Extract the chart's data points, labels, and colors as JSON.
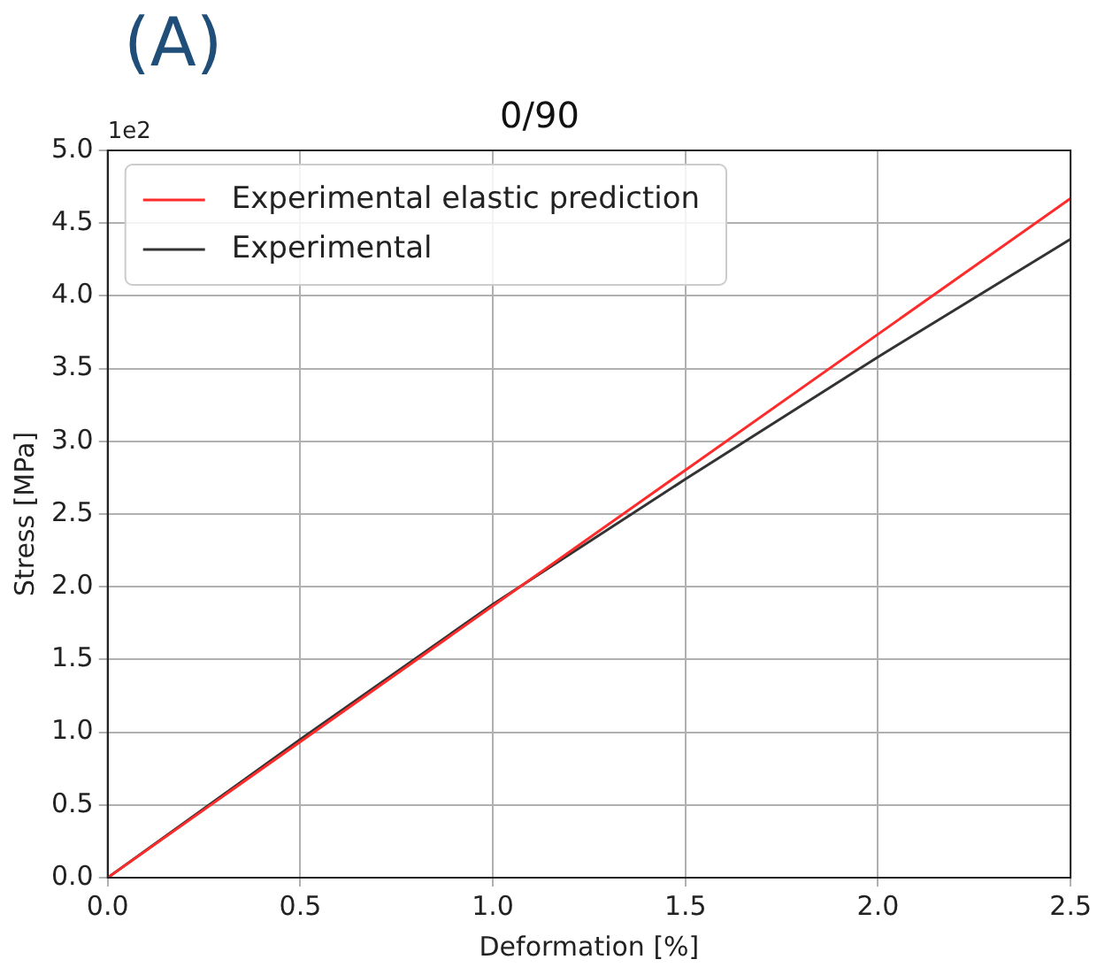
{
  "chart_data": {
    "type": "line",
    "title": "0/90",
    "xlabel": "Deformation [%]",
    "ylabel": "Stress [MPa]",
    "annotations": [
      "(A)",
      "1e2"
    ],
    "series": [
      {
        "name": "Experimental elastic prediction",
        "color": "#ff2a2a",
        "x": [
          0,
          2.5
        ],
        "values": [
          0,
          4.67
        ]
      },
      {
        "name": "Experimental",
        "color": "#333333",
        "x": [
          0,
          0.5,
          1.0,
          1.5,
          2.0,
          2.5
        ],
        "values": [
          0,
          0.95,
          1.88,
          2.74,
          3.58,
          4.39
        ]
      }
    ],
    "xlim": [
      0,
      2.5
    ],
    "xticks": [
      {
        "value": 0,
        "label": "0.0"
      },
      0.5,
      {
        "value": 1,
        "label": "1.0"
      },
      1.5,
      {
        "value": 2,
        "label": "2.0"
      },
      2.5
    ],
    "ylim": [
      0,
      5
    ],
    "yticks": [
      {
        "value": 0,
        "label": "0.0"
      },
      0.5,
      {
        "value": 1,
        "label": "1.0"
      },
      1.5,
      {
        "value": 2,
        "label": "2.0"
      },
      2.5,
      {
        "value": 3,
        "label": "3.0"
      },
      3.5,
      {
        "value": 4,
        "label": "4.0"
      },
      4.5,
      {
        "value": 5,
        "label": "5.0"
      }
    ],
    "grid": true,
    "legend": "top left",
    "marker": "none",
    "line_style": "solid"
  }
}
